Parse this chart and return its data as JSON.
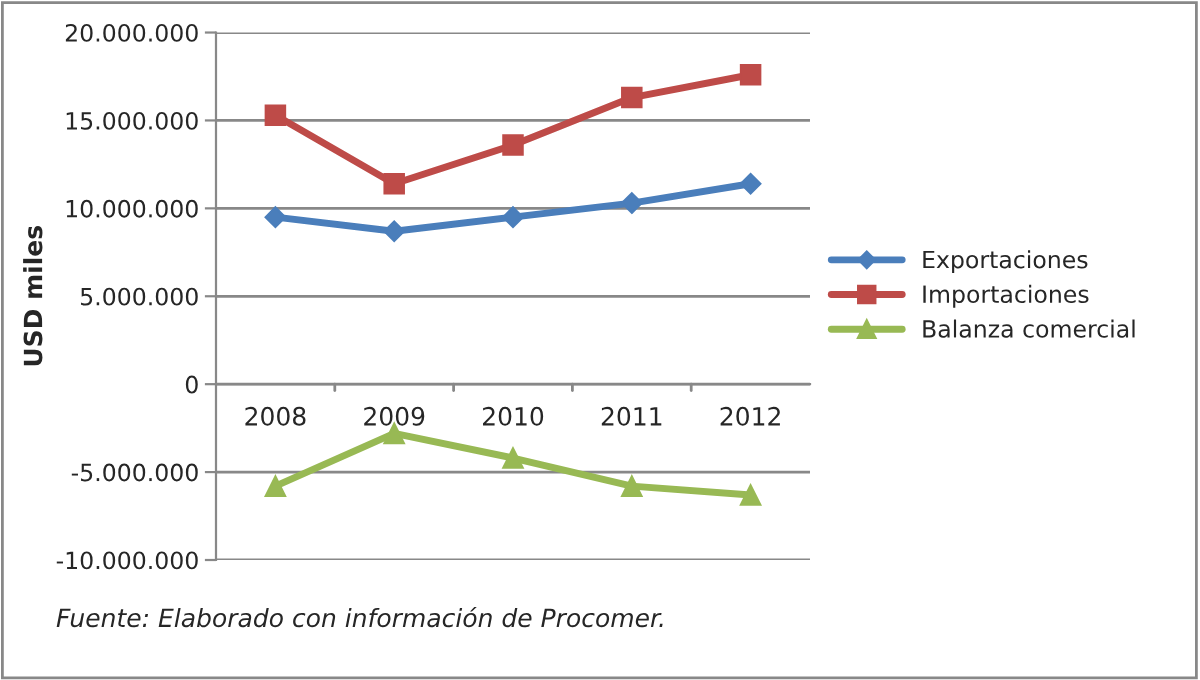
{
  "chart_data": {
    "type": "line",
    "ylabel": "USD miles",
    "categories": [
      "2008",
      "2009",
      "2010",
      "2011",
      "2012"
    ],
    "series": [
      {
        "name": "Exportaciones",
        "color": "#4a7ebb",
        "marker": "diamond",
        "values": [
          9500000,
          8700000,
          9500000,
          10300000,
          11400000
        ]
      },
      {
        "name": "Importaciones",
        "color": "#be4b48",
        "marker": "square",
        "values": [
          15300000,
          11400000,
          13600000,
          16300000,
          17600000
        ]
      },
      {
        "name": "Balanza comercial",
        "color": "#98b954",
        "marker": "triangle",
        "values": [
          -5800000,
          -2800000,
          -4200000,
          -5800000,
          -6300000
        ]
      }
    ],
    "ylim": [
      -10000000,
      20000000
    ],
    "yticks": [
      {
        "value": -10000000,
        "label": "-10.000.000"
      },
      {
        "value": -5000000,
        "label": "-5.000.000"
      },
      0,
      {
        "value": 5000000,
        "label": "5.000.000"
      },
      {
        "value": 10000000,
        "label": "10.000.000"
      },
      {
        "value": 15000000,
        "label": "15.000.000"
      },
      {
        "value": 20000000,
        "label": "20.000.000"
      }
    ],
    "grid": "y",
    "legend": "right",
    "annotations": [
      "Fuente: Elaborado con información de Procomer."
    ]
  }
}
